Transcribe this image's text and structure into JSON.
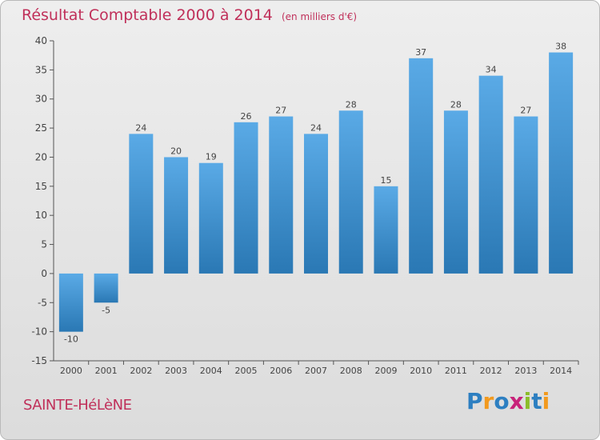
{
  "chart_data": {
    "type": "bar",
    "title": "Résultat Comptable 2000 à 2014",
    "subtitle": "(en milliers d'€)",
    "categories": [
      "2000",
      "2001",
      "2002",
      "2003",
      "2004",
      "2005",
      "2006",
      "2007",
      "2008",
      "2009",
      "2010",
      "2011",
      "2012",
      "2013",
      "2014"
    ],
    "values": [
      -10,
      -5,
      24,
      20,
      19,
      26,
      27,
      24,
      28,
      15,
      37,
      28,
      34,
      27,
      38
    ],
    "data_labels": [
      "-10",
      "-5",
      "24",
      "20",
      "19",
      "26",
      "27",
      "24",
      "28",
      "15",
      "37",
      "28",
      "34",
      "27",
      "38"
    ],
    "yticks": [
      40,
      35,
      30,
      25,
      20,
      15,
      10,
      5,
      0,
      -5,
      -10,
      -15
    ],
    "ylim": [
      -15,
      40
    ],
    "xlabel": "",
    "ylabel": "",
    "grid": false,
    "bar_color_top": "#5aaae6",
    "bar_color_bottom": "#2a78b4"
  },
  "footer": {
    "place_name": "SAINTE-HéLèNE",
    "logo_letters": [
      "P",
      "r",
      "o",
      "x",
      "i",
      "t",
      "i"
    ],
    "logo_colors": [
      "#2d7fc1",
      "#f29a1e",
      "#2d7fc1",
      "#c8227a",
      "#8bbd2a",
      "#2d7fc1",
      "#f29a1e"
    ]
  },
  "colors": {
    "title": "#c0305a",
    "axis": "#444444"
  }
}
